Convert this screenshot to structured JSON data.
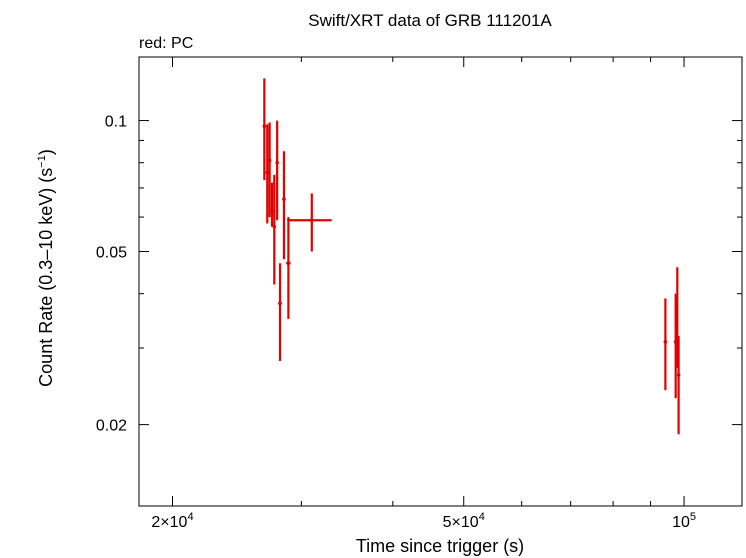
{
  "chart_data": {
    "type": "scatter",
    "title": "Swift/XRT data of GRB 111201A",
    "note": "red: PC",
    "xlabel": "Time since trigger (s)",
    "ylabel_main": "Count Rate (0.3–10 keV) (s",
    "ylabel_sup": "−1",
    "ylabel_end": ")",
    "xscale": "log",
    "yscale": "log",
    "xlim": [
      18000,
      120000
    ],
    "ylim": [
      0.013,
      0.14
    ],
    "x_ticks": [
      {
        "value": 20000,
        "mantissa": "2×10",
        "exp": "4"
      },
      {
        "value": 50000,
        "mantissa": "5×10",
        "exp": "4"
      },
      {
        "value": 100000,
        "mantissa": "10",
        "exp": "5"
      }
    ],
    "y_ticks": [
      {
        "value": 0.1,
        "label": "0.1"
      },
      {
        "value": 0.05,
        "label": "0.05"
      },
      {
        "value": 0.02,
        "label": "0.02"
      }
    ],
    "color": "#e00000",
    "series": [
      {
        "points": [
          {
            "x": 26700,
            "xlo": 26600,
            "xhi": 26800,
            "y": 0.097,
            "ylo": 0.073,
            "yhi": 0.125
          },
          {
            "x": 26950,
            "xlo": 26850,
            "xhi": 27050,
            "y": 0.076,
            "ylo": 0.058,
            "yhi": 0.098
          },
          {
            "x": 27150,
            "xlo": 27050,
            "xhi": 27250,
            "y": 0.081,
            "ylo": 0.06,
            "yhi": 0.099
          },
          {
            "x": 27350,
            "xlo": 27250,
            "xhi": 27450,
            "y": 0.062,
            "ylo": 0.057,
            "yhi": 0.072
          },
          {
            "x": 27550,
            "xlo": 27450,
            "xhi": 27650,
            "y": 0.057,
            "ylo": 0.042,
            "yhi": 0.075
          },
          {
            "x": 27800,
            "xlo": 27700,
            "xhi": 27900,
            "y": 0.08,
            "ylo": 0.059,
            "yhi": 0.1
          },
          {
            "x": 28050,
            "xlo": 27900,
            "xhi": 28200,
            "y": 0.038,
            "ylo": 0.028,
            "yhi": 0.047
          },
          {
            "x": 28400,
            "xlo": 28300,
            "xhi": 28500,
            "y": 0.066,
            "ylo": 0.048,
            "yhi": 0.085
          },
          {
            "x": 28800,
            "xlo": 28600,
            "xhi": 29000,
            "y": 0.047,
            "ylo": 0.035,
            "yhi": 0.06
          },
          {
            "x": 31000,
            "xlo": 28700,
            "xhi": 33000,
            "y": 0.059,
            "ylo": 0.05,
            "yhi": 0.068
          },
          {
            "x": 94300,
            "xlo": 94100,
            "xhi": 94500,
            "y": 0.031,
            "ylo": 0.024,
            "yhi": 0.039
          },
          {
            "x": 97400,
            "xlo": 97200,
            "xhi": 97600,
            "y": 0.031,
            "ylo": 0.023,
            "yhi": 0.04
          },
          {
            "x": 97900,
            "xlo": 97700,
            "xhi": 98100,
            "y": 0.031,
            "ylo": 0.027,
            "yhi": 0.046
          },
          {
            "x": 98300,
            "xlo": 98150,
            "xhi": 98450,
            "y": 0.026,
            "ylo": 0.019,
            "yhi": 0.032
          }
        ]
      }
    ]
  }
}
